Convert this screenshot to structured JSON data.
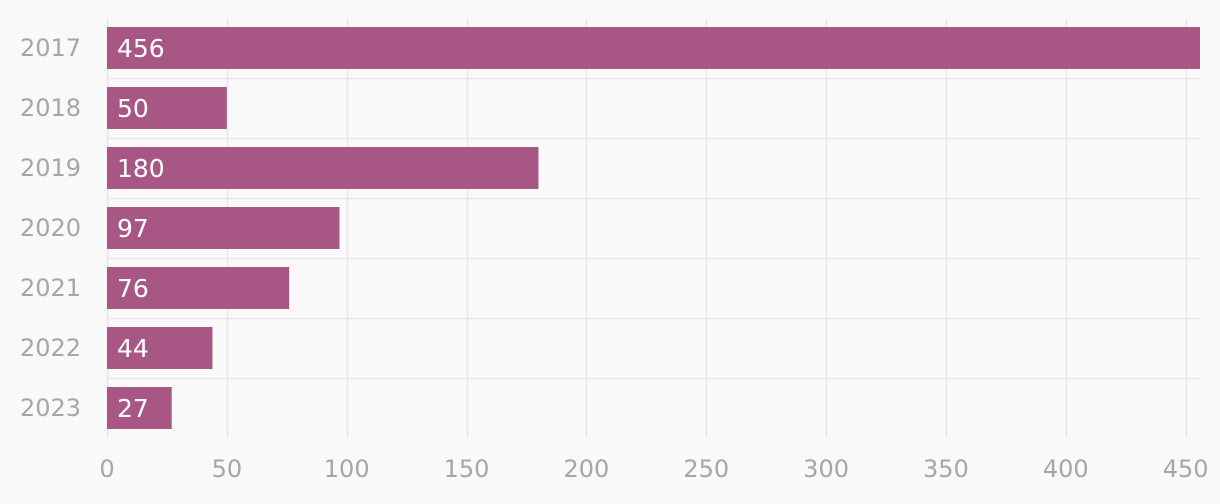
{
  "chart_data": {
    "type": "bar",
    "orientation": "horizontal",
    "categories": [
      "2017",
      "2018",
      "2019",
      "2020",
      "2021",
      "2022",
      "2023"
    ],
    "values": [
      456,
      50,
      180,
      97,
      76,
      44,
      27
    ],
    "data_labels": [
      "456",
      "50",
      "180",
      "97",
      "76",
      "44",
      "27"
    ],
    "x_ticks": [
      0,
      50,
      100,
      150,
      200,
      250,
      300,
      350,
      400,
      450
    ],
    "xlim": [
      0,
      456
    ],
    "title": "",
    "xlabel": "",
    "ylabel": "",
    "grid": true,
    "legend": "none",
    "colors": {
      "bar": "#a85785",
      "background": "#f9f9f9",
      "grid": "#e8e8e8",
      "axis_text": "#a6a6a6",
      "value_text": "#ffffff"
    }
  }
}
